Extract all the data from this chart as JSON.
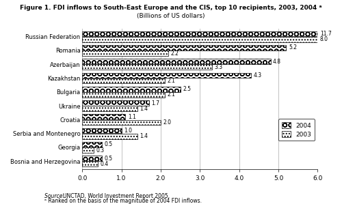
{
  "title": "Figure 1. FDI inflows to South-East Europe and the CIS, top 10 recipients, 2003, 2004 ᵃ",
  "subtitle": "(Billions of US dollars)",
  "countries": [
    "Russian Federation",
    "Romania",
    "Azerbaijan",
    "Kazakhstan",
    "Bulgaria",
    "Ukraine",
    "Croatia",
    "Serbia and Montenegro",
    "Georgia",
    "Bosnia and Herzegovina"
  ],
  "values_2004": [
    11.7,
    5.2,
    4.8,
    4.3,
    2.5,
    1.7,
    1.1,
    1.0,
    0.5,
    0.5
  ],
  "values_2003": [
    8.0,
    2.2,
    3.3,
    2.1,
    2.1,
    1.4,
    2.0,
    1.4,
    0.3,
    0.4
  ],
  "xlim": [
    0.0,
    6.0
  ],
  "xticks": [
    0.0,
    1.0,
    2.0,
    3.0,
    4.0,
    5.0,
    6.0
  ],
  "source_italic": "Source: ",
  "source_text": " UNCTAD, World Investment Report 2005.",
  "footnote_text": "ᵃ Ranked on the basis of the magnitude of 2004 FDI inflows.",
  "bar_height": 0.38,
  "legend_2004": "2004",
  "legend_2003": "2003"
}
